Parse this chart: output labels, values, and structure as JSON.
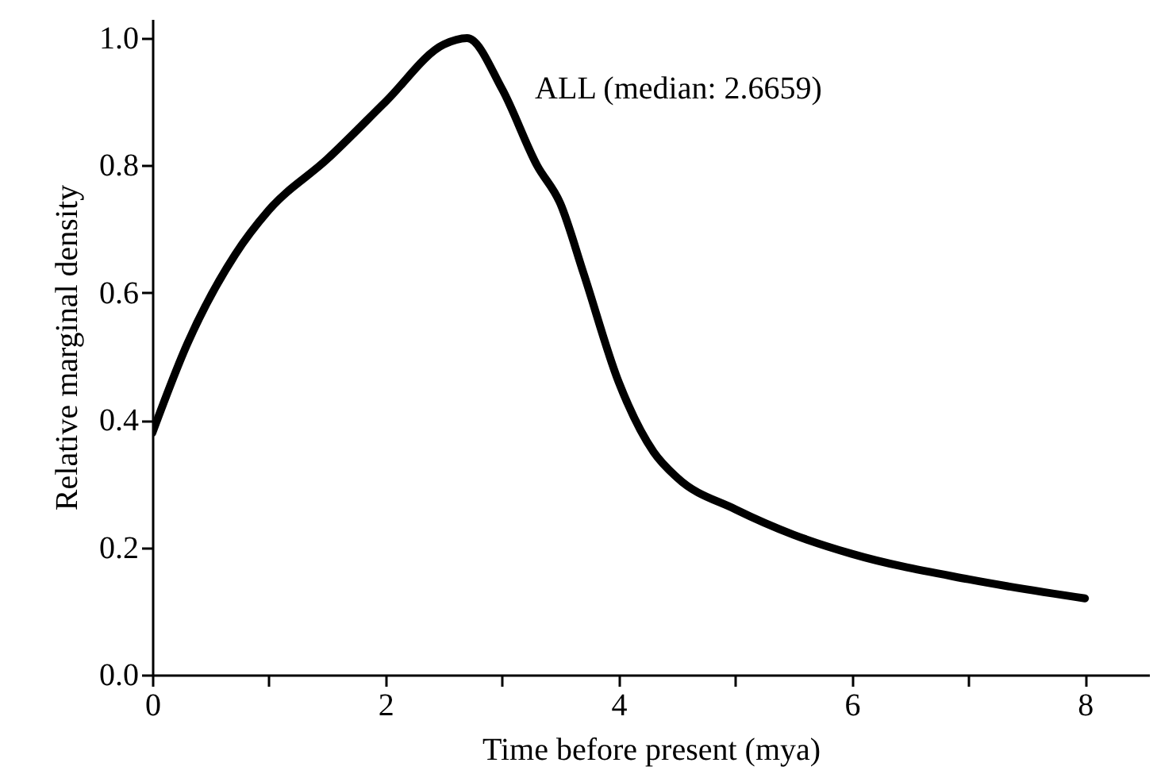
{
  "chart_data": {
    "type": "line",
    "xlabel": "Time before present (mya)",
    "ylabel": "Relative marginal density",
    "x": [
      0,
      0.3,
      0.71,
      1,
      1.5,
      2,
      2.5,
      2.7,
      3,
      3.3,
      3.5,
      3.7,
      4,
      4.3,
      4.5,
      5,
      5.5,
      6,
      7,
      8
    ],
    "series": [
      {
        "color": "#000000",
        "values": [
          0.38,
          0.52,
          0.66,
          0.73,
          0.81,
          0.9,
          0.99,
          1.0,
          0.92,
          0.8,
          0.74,
          0.63,
          0.46,
          0.35,
          0.31,
          0.26,
          0.22,
          0.19,
          0.15,
          0.12
        ]
      }
    ],
    "xlim": [
      0,
      8.55
    ],
    "xticks": [
      0,
      {
        "value": 1,
        "label": null
      },
      2,
      {
        "value": 3,
        "label": null
      },
      4,
      {
        "value": 5,
        "label": null
      },
      6,
      {
        "value": 7,
        "label": null
      },
      8
    ],
    "ylim": [
      0,
      1.03
    ],
    "yticks": [
      {
        "value": 0,
        "label": "0.0"
      },
      0.2,
      0.4,
      0.6,
      0.8,
      {
        "value": 1,
        "label": "1.0"
      }
    ],
    "annotations": [
      {
        "text": "ALL (median: 2.6659)",
        "x": 3.2,
        "y": 0.86
      }
    ],
    "grid": false,
    "marker": "none",
    "line_style": "solid"
  }
}
